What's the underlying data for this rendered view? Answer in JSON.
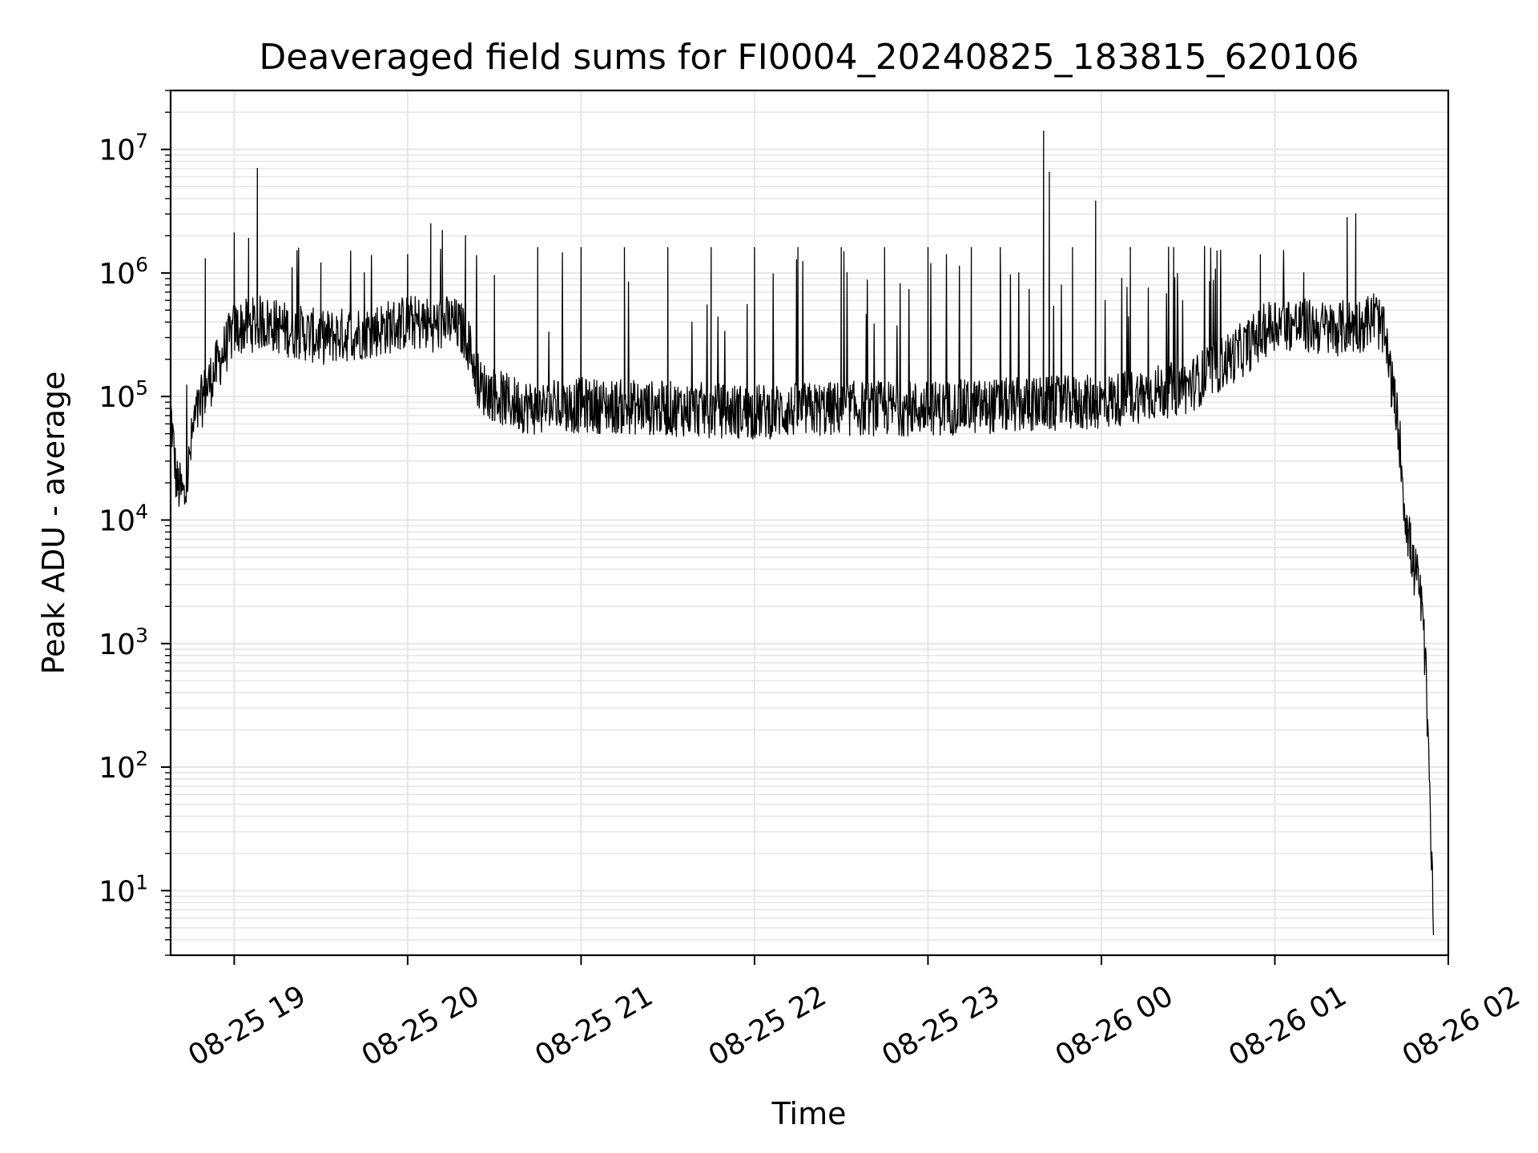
{
  "chart_data": {
    "type": "line",
    "title": "Deaveraged field sums for FI0004_20240825_183815_620106",
    "xlabel": "Time",
    "ylabel": "Peak ADU - average",
    "yscale": "log",
    "ylim": [
      3,
      30000000
    ],
    "xlim": [
      "2024-08-25 18:38",
      "2024-08-26 02:00"
    ],
    "x_ticks": [
      "08-25 19",
      "08-25 20",
      "08-25 21",
      "08-25 22",
      "08-25 23",
      "08-26 00",
      "08-26 01",
      "08-26 02"
    ],
    "y_ticks": [
      {
        "base": "10",
        "exp": "1"
      },
      {
        "base": "10",
        "exp": "2"
      },
      {
        "base": "10",
        "exp": "3"
      },
      {
        "base": "10",
        "exp": "4"
      },
      {
        "base": "10",
        "exp": "5"
      },
      {
        "base": "10",
        "exp": "6"
      },
      {
        "base": "10",
        "exp": "7"
      }
    ],
    "grid": true,
    "line_color": "#000000",
    "x": [
      "08-25 18:38",
      "08-25 18:40",
      "08-25 18:43",
      "08-25 18:46",
      "08-25 18:50",
      "08-25 19:00",
      "08-25 19:10",
      "08-25 19:18",
      "08-25 19:30",
      "08-25 19:40",
      "08-25 19:50",
      "08-25 20:00",
      "08-25 20:10",
      "08-25 20:15",
      "08-25 20:20",
      "08-25 20:25",
      "08-25 20:35",
      "08-25 20:45",
      "08-25 21:00",
      "08-25 21:30",
      "08-25 22:00",
      "08-25 22:30",
      "08-25 23:00",
      "08-25 23:30",
      "08-26 00:00",
      "08-26 00:30",
      "08-26 00:50",
      "08-26 01:00",
      "08-26 01:20",
      "08-26 01:30",
      "08-26 01:35",
      "08-26 01:38",
      "08-26 01:40",
      "08-26 01:43",
      "08-26 01:45",
      "08-26 01:48",
      "08-26 01:50",
      "08-26 01:52",
      "08-26 01:54",
      "08-26 01:55"
    ],
    "y": [
      80000,
      20000,
      15000,
      60000,
      110000,
      350000,
      400000,
      350000,
      300000,
      320000,
      350000,
      400000,
      380000,
      400000,
      330000,
      120000,
      90000,
      80000,
      85000,
      80000,
      75000,
      80000,
      80000,
      85000,
      90000,
      120000,
      250000,
      400000,
      350000,
      380000,
      450000,
      300000,
      150000,
      50000,
      12000,
      4000,
      3000,
      800,
      30,
      5
    ],
    "peaks": {
      "x": [
        "08-25 18:50",
        "08-25 19:00",
        "08-25 19:05",
        "08-25 19:08",
        "08-25 19:20",
        "08-25 19:30",
        "08-25 19:45",
        "08-25 20:00",
        "08-25 20:08",
        "08-25 20:12",
        "08-25 20:20",
        "08-25 20:30",
        "08-25 20:45",
        "08-25 21:00",
        "08-25 21:15",
        "08-25 21:30",
        "08-25 21:45",
        "08-25 22:00",
        "08-25 22:15",
        "08-25 22:30",
        "08-25 22:45",
        "08-25 23:00",
        "08-25 23:15",
        "08-25 23:25",
        "08-25 23:40",
        "08-25 23:42",
        "08-25 23:50",
        "08-25 23:58",
        "08-26 00:10",
        "08-26 00:25",
        "08-26 00:40",
        "08-26 00:55",
        "08-26 01:10",
        "08-26 01:25",
        "08-26 01:28"
      ],
      "y": [
        1300000,
        2100000,
        1900000,
        7000000,
        1100000,
        1200000,
        1000000,
        1400000,
        2500000,
        2200000,
        2000000,
        950000,
        1600000,
        1600000,
        1600000,
        1600000,
        1600000,
        1600000,
        1600000,
        1600000,
        1600000,
        1600000,
        1600000,
        1600000,
        14000000,
        6500000,
        1600000,
        3800000,
        1600000,
        1600000,
        1500000,
        1400000,
        1000000,
        2800000,
        3000000
      ]
    }
  }
}
